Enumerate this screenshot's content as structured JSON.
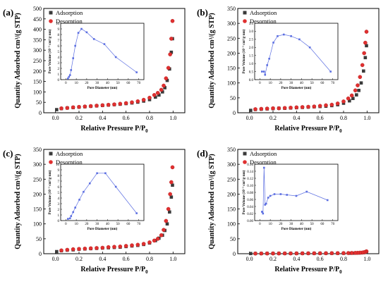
{
  "figure": {
    "series_names": [
      "Adsorption",
      "Desorption"
    ],
    "colors": {
      "adsorption": "#3a3a3a",
      "desorption": "#e03030",
      "inset": "#5b6ee1"
    }
  },
  "chart_data": [
    {
      "type": "scatter",
      "panel": "(a)",
      "xlabel": "Relative Pressure P/P0",
      "ylabel": "Quantity Adsorbed cm³/(g STP)",
      "xlim": [
        -0.1,
        1.1
      ],
      "ylim": [
        0,
        500
      ],
      "xticks": [
        "0.0",
        "0.2",
        "0.4",
        "0.6",
        "0.8",
        "1.0"
      ],
      "yticks": [
        "0",
        "50",
        "100",
        "150",
        "200",
        "250",
        "300",
        "350",
        "400",
        "450",
        "500"
      ],
      "legend": "top-left",
      "series": [
        {
          "name": "Adsorption",
          "x": [
            0.01,
            0.05,
            0.1,
            0.15,
            0.2,
            0.25,
            0.3,
            0.35,
            0.4,
            0.45,
            0.5,
            0.55,
            0.6,
            0.65,
            0.7,
            0.75,
            0.8,
            0.85,
            0.88,
            0.91,
            0.93,
            0.95,
            0.97,
            0.985,
            0.995
          ],
          "y": [
            15,
            20,
            23,
            25,
            27,
            29,
            31,
            33,
            35,
            37,
            39,
            41,
            44,
            47,
            51,
            56,
            63,
            75,
            85,
            100,
            120,
            155,
            210,
            290,
            355
          ]
        },
        {
          "name": "Desorption",
          "x": [
            0.995,
            0.985,
            0.975,
            0.96,
            0.94,
            0.92,
            0.9,
            0.87,
            0.84,
            0.8,
            0.75,
            0.7,
            0.65,
            0.6,
            0.55,
            0.5,
            0.45,
            0.4,
            0.35,
            0.3,
            0.25,
            0.2,
            0.15,
            0.1,
            0.05
          ],
          "y": [
            440,
            355,
            280,
            215,
            165,
            130,
            110,
            95,
            85,
            72,
            62,
            55,
            50,
            46,
            43,
            40,
            38,
            36,
            34,
            32,
            30,
            28,
            26,
            23,
            21
          ]
        }
      ],
      "inset": {
        "xlabel": "Pore Diameter (nm)",
        "ylabel": "Pore Volume (10⁻³ cm³/g·nm)",
        "xlim": [
          -5,
          75
        ],
        "ylim": [
          0,
          10
        ],
        "xticks": [
          "0",
          "10",
          "20",
          "30",
          "40",
          "50",
          "60",
          "70"
        ],
        "yticks": [
          "0",
          "1",
          "2",
          "3",
          "4",
          "5",
          "6",
          "7",
          "8",
          "9",
          "10"
        ],
        "x": [
          2,
          3,
          4,
          5,
          7,
          9,
          12,
          15,
          20,
          27,
          37,
          48,
          68
        ],
        "y": [
          0.2,
          0.5,
          0.8,
          1.7,
          3.8,
          6.0,
          8.3,
          9.0,
          8.4,
          7.2,
          6.3,
          4.0,
          1.3
        ]
      }
    },
    {
      "type": "scatter",
      "panel": "(b)",
      "xlabel": "Relative Pressure P/P0",
      "ylabel": "Quantity Adsorbed cm³/(g STP)",
      "xlim": [
        -0.1,
        1.1
      ],
      "ylim": [
        0,
        350
      ],
      "xticks": [
        "0.0",
        "0.2",
        "0.4",
        "0.6",
        "0.8",
        "1.0"
      ],
      "yticks": [
        "0",
        "50",
        "100",
        "150",
        "200",
        "250",
        "300",
        "350"
      ],
      "legend": "top-left",
      "series": [
        {
          "name": "Adsorption",
          "x": [
            0.01,
            0.05,
            0.1,
            0.15,
            0.2,
            0.25,
            0.3,
            0.35,
            0.4,
            0.45,
            0.5,
            0.55,
            0.6,
            0.65,
            0.7,
            0.75,
            0.8,
            0.85,
            0.88,
            0.91,
            0.93,
            0.95,
            0.97,
            0.985,
            0.995
          ],
          "y": [
            8,
            11,
            12,
            13,
            14,
            15,
            15,
            16,
            17,
            18,
            19,
            20,
            21,
            22,
            24,
            27,
            32,
            40,
            48,
            60,
            75,
            100,
            140,
            185,
            225
          ]
        },
        {
          "name": "Desorption",
          "x": [
            0.995,
            0.985,
            0.975,
            0.96,
            0.94,
            0.92,
            0.9,
            0.87,
            0.84,
            0.8,
            0.75,
            0.7,
            0.65,
            0.6,
            0.55,
            0.5,
            0.45,
            0.4,
            0.35,
            0.3,
            0.25,
            0.2,
            0.15,
            0.1,
            0.05
          ],
          "y": [
            272,
            235,
            200,
            160,
            120,
            92,
            75,
            58,
            48,
            38,
            31,
            27,
            25,
            23,
            21,
            20,
            19,
            18,
            17,
            16,
            15,
            15,
            14,
            13,
            12
          ]
        }
      ],
      "inset": {
        "xlabel": "Pore Diameter (nm)",
        "ylabel": "Pore Volume (10⁻³ cm³/g·nm)",
        "xlim": [
          -5,
          75
        ],
        "ylim": [
          0,
          3.5
        ],
        "xticks": [
          "0",
          "10",
          "20",
          "30",
          "40",
          "50",
          "60",
          "70"
        ],
        "yticks": [
          "0.0",
          "0.5",
          "1.0",
          "1.5",
          "2.0",
          "2.5",
          "3.0",
          "3.5"
        ],
        "x": [
          2,
          4,
          5,
          7,
          9,
          13,
          17,
          23,
          30,
          38,
          48,
          68
        ],
        "y": [
          0.5,
          0.5,
          0.3,
          0.9,
          1.3,
          2.3,
          2.7,
          2.8,
          2.7,
          2.5,
          2.0,
          0.5
        ]
      }
    },
    {
      "type": "scatter",
      "panel": "(c)",
      "xlabel": "Relative Pressure P/P0",
      "ylabel": "Quantity Adsorbed cm³/(g STP)",
      "xlim": [
        -0.1,
        1.1
      ],
      "ylim": [
        0,
        350
      ],
      "xticks": [
        "0.0",
        "0.2",
        "0.4",
        "0.6",
        "0.8",
        "1.0"
      ],
      "yticks": [
        "0",
        "50",
        "100",
        "150",
        "200",
        "250",
        "300",
        "350"
      ],
      "legend": "top-left",
      "series": [
        {
          "name": "Adsorption",
          "x": [
            0.01,
            0.05,
            0.1,
            0.15,
            0.2,
            0.25,
            0.3,
            0.35,
            0.4,
            0.45,
            0.5,
            0.55,
            0.6,
            0.65,
            0.7,
            0.75,
            0.8,
            0.85,
            0.88,
            0.91,
            0.93,
            0.95,
            0.97,
            0.985,
            0.995
          ],
          "y": [
            7,
            10,
            12,
            13,
            15,
            16,
            17,
            18,
            19,
            20,
            21,
            22,
            24,
            26,
            28,
            31,
            36,
            44,
            52,
            62,
            78,
            100,
            140,
            190,
            230
          ]
        },
        {
          "name": "Desorption",
          "x": [
            0.995,
            0.985,
            0.975,
            0.96,
            0.94,
            0.92,
            0.9,
            0.87,
            0.84,
            0.8,
            0.75,
            0.7,
            0.65,
            0.6,
            0.55,
            0.5,
            0.45,
            0.4,
            0.35,
            0.3,
            0.25,
            0.2,
            0.15,
            0.1,
            0.05
          ],
          "y": [
            290,
            240,
            200,
            150,
            110,
            80,
            62,
            50,
            44,
            38,
            33,
            30,
            28,
            26,
            24,
            23,
            22,
            20,
            19,
            18,
            17,
            16,
            15,
            13,
            11
          ]
        }
      ],
      "inset": {
        "xlabel": "Pore Diameter (nm)",
        "ylabel": "Pore Volume (10⁻³ cm³/g·nm)",
        "xlim": [
          -5,
          75
        ],
        "ylim": [
          0,
          10
        ],
        "xticks": [
          "0",
          "10",
          "20",
          "30",
          "40",
          "50",
          "60",
          "70"
        ],
        "yticks": [
          "0",
          "1",
          "2",
          "3",
          "4",
          "5",
          "6",
          "7",
          "8",
          "9",
          "10"
        ],
        "x": [
          2,
          4,
          5,
          7,
          9,
          13,
          17,
          23,
          30,
          38,
          48,
          68
        ],
        "y": [
          0.3,
          0.4,
          0.8,
          1.5,
          2.3,
          3.7,
          5.1,
          6.6,
          8.4,
          8.4,
          6.0,
          1.3
        ]
      }
    },
    {
      "type": "scatter",
      "panel": "(d)",
      "xlabel": "Relative Pressure P/P0",
      "ylabel": "Quantity Adsorbed cm³/(g STP)",
      "xlim": [
        -0.1,
        1.1
      ],
      "ylim": [
        0,
        350
      ],
      "xticks": [
        "0.0",
        "0.2",
        "0.4",
        "0.6",
        "0.8",
        "1.0"
      ],
      "yticks": [
        "0",
        "50",
        "100",
        "150",
        "200",
        "250",
        "300",
        "350"
      ],
      "legend": "top-left",
      "series": [
        {
          "name": "Adsorption",
          "x": [
            0.01,
            0.05,
            0.1,
            0.15,
            0.2,
            0.25,
            0.3,
            0.35,
            0.4,
            0.45,
            0.5,
            0.55,
            0.6,
            0.65,
            0.7,
            0.75,
            0.8,
            0.85,
            0.88,
            0.91,
            0.93,
            0.95,
            0.97,
            0.985,
            0.995
          ],
          "y": [
            0.5,
            0.6,
            0.6,
            0.7,
            0.7,
            0.8,
            0.8,
            0.9,
            0.9,
            1,
            1,
            1.1,
            1.1,
            1.2,
            1.3,
            1.4,
            1.5,
            1.7,
            1.9,
            2.1,
            2.4,
            2.8,
            3.4,
            4.3,
            5.5
          ]
        },
        {
          "name": "Desorption",
          "x": [
            0.995,
            0.985,
            0.975,
            0.96,
            0.94,
            0.92,
            0.9,
            0.87,
            0.84,
            0.8,
            0.75,
            0.7,
            0.65,
            0.6,
            0.55,
            0.5,
            0.45,
            0.4,
            0.35,
            0.3,
            0.25,
            0.2,
            0.15,
            0.1,
            0.05
          ],
          "y": [
            8,
            6,
            5,
            4,
            3.5,
            3,
            2.7,
            2.4,
            2.2,
            2,
            1.8,
            1.7,
            1.6,
            1.5,
            1.4,
            1.3,
            1.2,
            1.1,
            1,
            1,
            0.9,
            0.9,
            0.8,
            0.7,
            0.6
          ]
        }
      ],
      "inset": {
        "xlabel": "Pore Diameter (nm)",
        "ylabel": "Pore Volume (10⁻³ cm³/g·nm)",
        "xlim": [
          -5,
          75
        ],
        "ylim": [
          0,
          0.16
        ],
        "xticks": [
          "0",
          "10",
          "20",
          "30",
          "40",
          "50",
          "60",
          "70"
        ],
        "yticks": [
          "0.00",
          "0.02",
          "0.04",
          "0.06",
          "0.08",
          "0.10",
          "0.12",
          "0.14",
          "0.16"
        ],
        "x": [
          2,
          3,
          4,
          5,
          6,
          8,
          10,
          14,
          20,
          26,
          35,
          45,
          65
        ],
        "y": [
          0.025,
          0.02,
          0.15,
          0.045,
          0.048,
          0.065,
          0.07,
          0.075,
          0.075,
          0.073,
          0.07,
          0.082,
          0.058
        ]
      }
    }
  ]
}
